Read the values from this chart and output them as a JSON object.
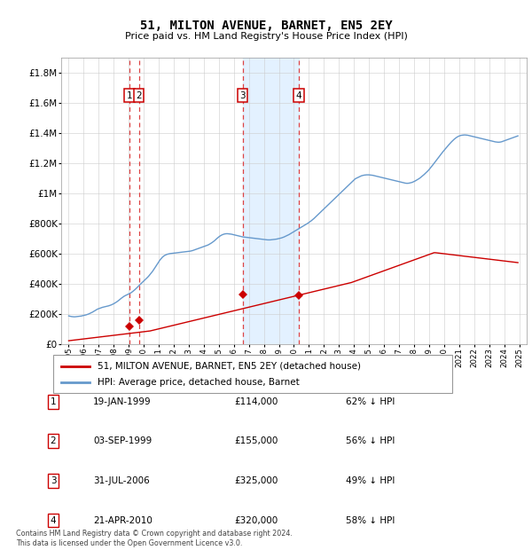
{
  "title": "51, MILTON AVENUE, BARNET, EN5 2EY",
  "subtitle": "Price paid vs. HM Land Registry's House Price Index (HPI)",
  "legend_property": "51, MILTON AVENUE, BARNET, EN5 2EY (detached house)",
  "legend_hpi": "HPI: Average price, detached house, Barnet",
  "footer": "Contains HM Land Registry data © Crown copyright and database right 2024.\nThis data is licensed under the Open Government Licence v3.0.",
  "transactions": [
    {
      "id": 1,
      "date": "19-JAN-1999",
      "price": 114000,
      "hpi_pct": "62% ↓ HPI",
      "x": 1999.05
    },
    {
      "id": 2,
      "date": "03-SEP-1999",
      "price": 155000,
      "hpi_pct": "56% ↓ HPI",
      "x": 1999.67
    },
    {
      "id": 3,
      "date": "31-JUL-2006",
      "price": 325000,
      "hpi_pct": "49% ↓ HPI",
      "x": 2006.58
    },
    {
      "id": 4,
      "date": "21-APR-2010",
      "price": 320000,
      "hpi_pct": "58% ↓ HPI",
      "x": 2010.31
    }
  ],
  "property_color": "#cc0000",
  "hpi_color": "#6699cc",
  "vline_color": "#dd4444",
  "shade_color": "#ddeeff",
  "ylim": [
    0,
    1900000
  ],
  "xlim": [
    1994.5,
    2025.5
  ],
  "yticks": [
    0,
    200000,
    400000,
    600000,
    800000,
    1000000,
    1200000,
    1400000,
    1600000,
    1800000
  ],
  "ytick_labels": [
    "£0",
    "£200K",
    "£400K",
    "£600K",
    "£800K",
    "£1M",
    "£1.2M",
    "£1.4M",
    "£1.6M",
    "£1.8M"
  ],
  "hpi_years_start": 1995.0,
  "hpi_years_step": 0.08333,
  "hpi_values": [
    185000,
    183000,
    181000,
    180000,
    179000,
    179000,
    180000,
    181000,
    182000,
    183000,
    184000,
    186000,
    188000,
    190000,
    192000,
    195000,
    198000,
    202000,
    206000,
    210000,
    215000,
    220000,
    225000,
    230000,
    233000,
    236000,
    239000,
    242000,
    244000,
    246000,
    248000,
    250000,
    252000,
    255000,
    258000,
    262000,
    266000,
    271000,
    276000,
    282000,
    288000,
    295000,
    302000,
    308000,
    314000,
    319000,
    323000,
    327000,
    331000,
    335000,
    340000,
    346000,
    353000,
    360000,
    368000,
    376000,
    385000,
    393000,
    401000,
    409000,
    417000,
    425000,
    433000,
    441000,
    450000,
    460000,
    470000,
    481000,
    493000,
    506000,
    519000,
    532000,
    545000,
    557000,
    567000,
    576000,
    583000,
    588000,
    592000,
    595000,
    597000,
    599000,
    600000,
    601000,
    602000,
    603000,
    604000,
    605000,
    606000,
    607000,
    608000,
    609000,
    610000,
    611000,
    612000,
    613000,
    614000,
    615000,
    617000,
    619000,
    622000,
    625000,
    628000,
    631000,
    634000,
    637000,
    640000,
    643000,
    646000,
    649000,
    652000,
    655000,
    659000,
    664000,
    669000,
    675000,
    681000,
    688000,
    696000,
    703000,
    710000,
    716000,
    721000,
    725000,
    728000,
    730000,
    731000,
    731000,
    730000,
    729000,
    728000,
    726000,
    724000,
    722000,
    720000,
    718000,
    716000,
    714000,
    712000,
    710000,
    709000,
    708000,
    707000,
    706000,
    705000,
    704000,
    703000,
    702000,
    701000,
    700000,
    699000,
    698000,
    697000,
    696000,
    695000,
    694000,
    693000,
    692000,
    691000,
    690000,
    690000,
    690000,
    691000,
    692000,
    693000,
    694000,
    695000,
    697000,
    699000,
    701000,
    703000,
    706000,
    709000,
    713000,
    717000,
    721000,
    725000,
    730000,
    735000,
    740000,
    745000,
    750000,
    755000,
    760000,
    765000,
    770000,
    775000,
    780000,
    785000,
    790000,
    795000,
    800000,
    806000,
    812000,
    818000,
    825000,
    832000,
    840000,
    848000,
    856000,
    864000,
    872000,
    880000,
    888000,
    896000,
    904000,
    912000,
    920000,
    928000,
    936000,
    944000,
    952000,
    960000,
    968000,
    976000,
    984000,
    992000,
    1000000,
    1008000,
    1016000,
    1024000,
    1032000,
    1040000,
    1048000,
    1056000,
    1064000,
    1072000,
    1080000,
    1088000,
    1096000,
    1100000,
    1104000,
    1108000,
    1112000,
    1116000,
    1118000,
    1120000,
    1121000,
    1122000,
    1122000,
    1122000,
    1121000,
    1120000,
    1119000,
    1117000,
    1115000,
    1113000,
    1111000,
    1109000,
    1107000,
    1105000,
    1103000,
    1101000,
    1099000,
    1097000,
    1095000,
    1093000,
    1091000,
    1089000,
    1087000,
    1085000,
    1083000,
    1081000,
    1079000,
    1077000,
    1075000,
    1073000,
    1071000,
    1069000,
    1067000,
    1066000,
    1066000,
    1067000,
    1069000,
    1071000,
    1074000,
    1078000,
    1082000,
    1087000,
    1092000,
    1097000,
    1103000,
    1110000,
    1117000,
    1124000,
    1132000,
    1140000,
    1148000,
    1157000,
    1167000,
    1177000,
    1188000,
    1199000,
    1210000,
    1221000,
    1232000,
    1243000,
    1254000,
    1265000,
    1275000,
    1285000,
    1295000,
    1305000,
    1315000,
    1324000,
    1333000,
    1342000,
    1350000,
    1358000,
    1365000,
    1371000,
    1376000,
    1380000,
    1383000,
    1385000,
    1386000,
    1387000,
    1387000,
    1386000,
    1385000,
    1383000,
    1381000,
    1379000,
    1377000,
    1375000,
    1373000,
    1371000,
    1369000,
    1367000,
    1365000,
    1363000,
    1361000,
    1359000,
    1357000,
    1355000,
    1353000,
    1351000,
    1349000,
    1347000,
    1345000,
    1343000,
    1341000,
    1340000,
    1339000,
    1339000,
    1340000,
    1342000,
    1345000,
    1348000,
    1351000,
    1354000,
    1357000,
    1360000,
    1363000,
    1366000,
    1369000,
    1372000,
    1375000,
    1378000,
    1381000
  ],
  "property_hpi_values": [
    20000,
    21000,
    22000,
    23000,
    24000,
    25000,
    26000,
    27000,
    28000,
    29000,
    30000,
    31000,
    32000,
    33000,
    34000,
    35000,
    36000,
    37000,
    38000,
    39000,
    40000,
    41000,
    42000,
    43000,
    44000,
    45000,
    46000,
    47000,
    48000,
    49000,
    50000,
    51000,
    52000,
    53000,
    54000,
    55000,
    56000,
    57000,
    58000,
    59000,
    60000,
    61000,
    62000,
    63000,
    64000,
    65000,
    66000,
    67000,
    68000,
    69000,
    70000,
    71000,
    72000,
    73000,
    74000,
    75000,
    76000,
    77000,
    78000,
    79000,
    80000,
    81000,
    82000,
    83000,
    84000,
    85000,
    87000,
    89000,
    91000,
    93000,
    95000,
    97000,
    99000,
    101000,
    103000,
    105000,
    107000,
    109000,
    111000,
    113000,
    115000,
    117000,
    119000,
    121000,
    123000,
    125000,
    127000,
    129000,
    131000,
    133000,
    135000,
    137000,
    139000,
    141000,
    143000,
    145000,
    147000,
    149000,
    151000,
    153000,
    155000,
    157000,
    159000,
    161000,
    163000,
    165000,
    167000,
    169000,
    171000,
    173000,
    175000,
    177000,
    179000,
    181000,
    183000,
    185000,
    187000,
    189000,
    191000,
    193000,
    195000,
    197000,
    199000,
    201000,
    203000,
    205000,
    207000,
    209000,
    211000,
    213000,
    215000,
    217000,
    219000,
    221000,
    223000,
    225000,
    227000,
    229000,
    231000,
    233000,
    235000,
    237000,
    239000,
    241000,
    243000,
    245000,
    247000,
    249000,
    251000,
    253000,
    255000,
    257000,
    259000,
    261000,
    263000,
    265000,
    267000,
    269000,
    271000,
    273000,
    275000,
    277000,
    279000,
    281000,
    283000,
    285000,
    287000,
    289000,
    291000,
    293000,
    295000,
    297000,
    299000,
    301000,
    303000,
    305000,
    307000,
    309000,
    311000,
    313000,
    315000,
    317000,
    319000,
    321000,
    323000,
    325000,
    327000,
    329000,
    331000,
    333000,
    335000,
    337000,
    339000,
    341000,
    343000,
    345000,
    347000,
    349000,
    351000,
    353000,
    355000,
    357000,
    359000,
    361000,
    363000,
    365000,
    367000,
    369000,
    371000,
    373000,
    375000,
    377000,
    379000,
    381000,
    383000,
    385000,
    387000,
    389000,
    391000,
    393000,
    395000,
    397000,
    399000,
    401000,
    403000,
    405000,
    407000,
    410000,
    413000,
    416000,
    419000,
    422000,
    425000,
    428000,
    431000,
    434000,
    437000,
    440000,
    443000,
    446000,
    449000,
    452000,
    455000,
    458000,
    461000,
    464000,
    467000,
    470000,
    473000,
    476000,
    479000,
    482000,
    485000,
    488000,
    491000,
    494000,
    497000,
    500000,
    503000,
    506000,
    509000,
    512000,
    515000,
    518000,
    521000,
    524000,
    527000,
    530000,
    533000,
    536000,
    539000,
    542000,
    545000,
    548000,
    551000,
    554000,
    557000,
    560000,
    563000,
    566000,
    569000,
    572000,
    575000,
    578000,
    581000,
    584000,
    587000,
    590000,
    593000,
    596000,
    599000,
    602000,
    605000,
    605000,
    604000,
    603000,
    602000,
    601000,
    600000,
    599000,
    598000,
    597000,
    596000,
    595000,
    594000,
    593000,
    592000,
    591000,
    590000,
    589000,
    588000,
    587000,
    586000,
    585000,
    584000,
    583000,
    582000,
    581000,
    580000,
    579000,
    578000,
    577000,
    576000,
    575000,
    574000,
    573000,
    572000,
    571000,
    570000,
    569000,
    568000,
    567000,
    566000,
    565000,
    564000,
    563000,
    562000,
    561000,
    560000,
    559000,
    558000,
    557000,
    556000,
    555000,
    554000,
    553000,
    552000,
    551000,
    550000,
    549000,
    548000,
    547000,
    546000,
    545000,
    544000,
    543000,
    542000,
    541000,
    540000,
    539000
  ]
}
